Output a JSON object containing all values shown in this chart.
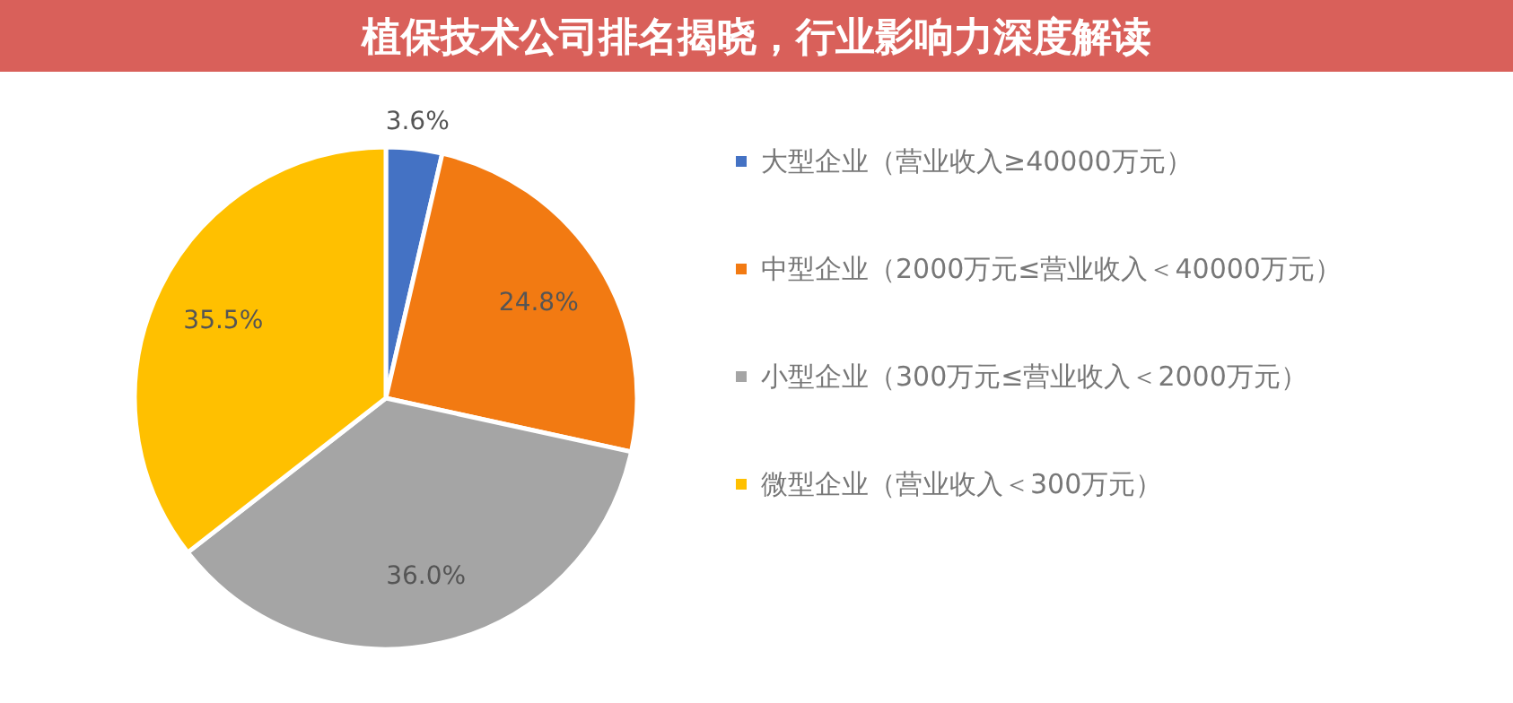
{
  "chart_data": {
    "type": "pie",
    "title": "植保技术公司排名揭晓，行业影响力深度解读",
    "categories": [
      "大型企业（营业收入≥40000万元）",
      "中型企业（2000万元≤营业收入＜40000万元）",
      "小型企业（300万元≤营业收入＜2000万元）",
      "微型企业（营业收入＜300万元）"
    ],
    "values": [
      3.6,
      24.8,
      36.0,
      35.5
    ],
    "colors": [
      "#4472c4",
      "#f27a12",
      "#a5a5a5",
      "#ffc000"
    ],
    "value_labels": [
      "3.6%",
      "24.8%",
      "36.0%",
      "35.5%"
    ],
    "legend": "right"
  }
}
